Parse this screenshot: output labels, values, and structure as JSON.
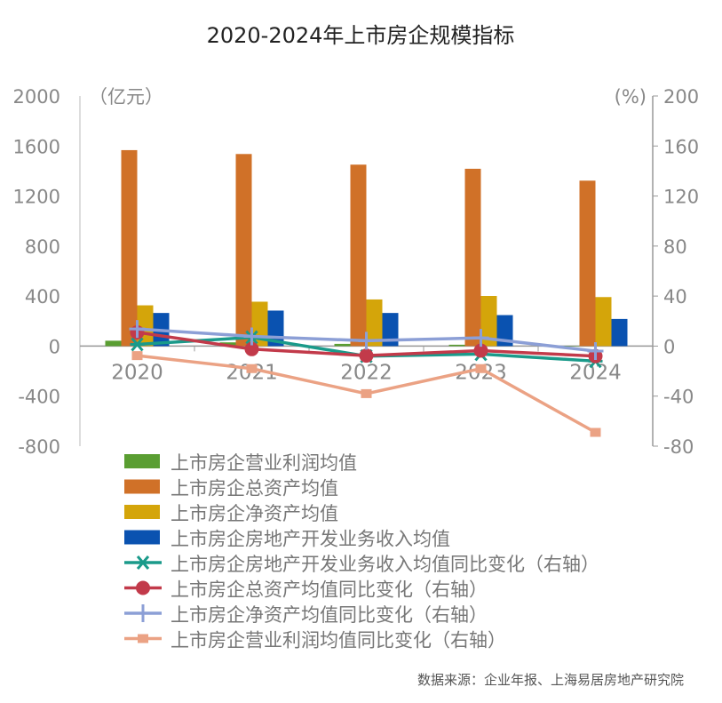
{
  "chart_data": {
    "type": "bar+line",
    "title": "2020-2024年上市房企规模指标",
    "categories": [
      "2020",
      "2021",
      "2022",
      "2023",
      "2024"
    ],
    "left_axis": {
      "label": "（亿元）",
      "ylim": [
        -800,
        2000
      ],
      "ticks": [
        -800,
        -400,
        0,
        400,
        800,
        1200,
        1600,
        2000
      ]
    },
    "right_axis": {
      "label": "(%)",
      "ylim": [
        -80,
        200
      ],
      "ticks": [
        -80,
        -40,
        0,
        40,
        80,
        120,
        160,
        200
      ]
    },
    "grid": false,
    "legend_position": "bottom",
    "bar_series": [
      {
        "name": "上市房企营业利润均值",
        "color": "#5a9e32",
        "values": [
          43,
          30,
          18,
          11,
          3
        ]
      },
      {
        "name": "上市房企总资产均值",
        "color": "#d07128",
        "values": [
          1567,
          1536,
          1451,
          1418,
          1323
        ]
      },
      {
        "name": "上市房企净资产均值",
        "color": "#d4a50a",
        "values": [
          326,
          355,
          373,
          401,
          392
        ]
      },
      {
        "name": "上市房企房地产开发业务收入均值",
        "color": "#0a52b0",
        "values": [
          265,
          284,
          265,
          248,
          217
        ]
      }
    ],
    "line_series": [
      {
        "name": "上市房企房地产开发业务收入均值同比变化（右轴）",
        "color": "#1a9a8a",
        "marker": "asterisk",
        "values": [
          1.4,
          7,
          -8,
          -6.4,
          -12
        ]
      },
      {
        "name": "上市房企总资产均值同比变化（右轴）",
        "color": "#c23a4a",
        "marker": "circle",
        "values": [
          11,
          -2.4,
          -7.6,
          -3.6,
          -8
        ]
      },
      {
        "name": "上市房企净资产均值同比变化（右轴）",
        "color": "#8c9fd6",
        "marker": "plus",
        "values": [
          13.7,
          7.8,
          4.3,
          6.6,
          -4
        ]
      },
      {
        "name": "上市房企营业利润均值同比变化（右轴）",
        "color": "#eba284",
        "marker": "square",
        "values": [
          -7.6,
          -18,
          -38,
          -18,
          -69
        ]
      }
    ],
    "source": "数据来源：企业年报、上海易居房地产研究院"
  }
}
